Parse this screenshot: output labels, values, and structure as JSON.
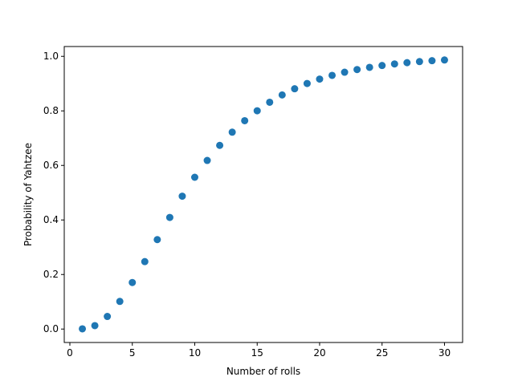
{
  "chart_data": {
    "type": "scatter",
    "title": "",
    "xlabel": "Number of rolls",
    "ylabel": "Probability of Yahtzee",
    "xlim": [
      -0.45,
      31.45
    ],
    "ylim": [
      -0.0493,
      1.036
    ],
    "xticks": [
      0,
      5,
      10,
      15,
      20,
      25,
      30
    ],
    "yticks": [
      0.0,
      0.2,
      0.4,
      0.6,
      0.8,
      1.0
    ],
    "xtick_labels": [
      "0",
      "5",
      "10",
      "15",
      "20",
      "25",
      "30"
    ],
    "ytick_labels": [
      "0.0",
      "0.2",
      "0.4",
      "0.6",
      "0.8",
      "1.0"
    ],
    "grid": false,
    "legend": "none",
    "marker_color": "#1f77b4",
    "series": [
      {
        "x": [
          1,
          2,
          3,
          4,
          5,
          6,
          7,
          8,
          9,
          10,
          11,
          12,
          13,
          14,
          15,
          16,
          17,
          18,
          19,
          20,
          21,
          22,
          23,
          24,
          25,
          26,
          27,
          28,
          29,
          30
        ],
        "y": [
          0.0008,
          0.0126,
          0.0461,
          0.1013,
          0.1706,
          0.2473,
          0.3279,
          0.4092,
          0.4872,
          0.5566,
          0.6183,
          0.6735,
          0.7219,
          0.764,
          0.8005,
          0.8317,
          0.8584,
          0.8811,
          0.9004,
          0.9166,
          0.9303,
          0.9418,
          0.9516,
          0.9596,
          0.9664,
          0.9721,
          0.9768,
          0.9807,
          0.984,
          0.9867
        ]
      }
    ]
  }
}
